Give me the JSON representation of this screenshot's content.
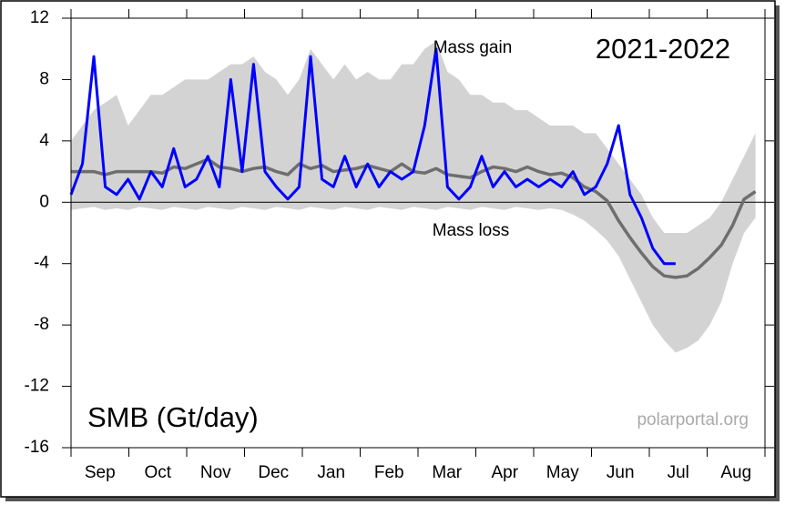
{
  "chart_data": {
    "type": "line",
    "title": "2021-2022",
    "y_label": "SMB (Gt/day)",
    "annotations": [
      "Mass gain",
      "Mass loss"
    ],
    "watermark": "polarportal.org",
    "categories": [
      "Sep",
      "Oct",
      "Nov",
      "Dec",
      "Jan",
      "Feb",
      "Mar",
      "Apr",
      "May",
      "Jun",
      "Jul",
      "Aug"
    ],
    "xlim": [
      0,
      365
    ],
    "ylim": [
      -16,
      12
    ],
    "yticks": [
      -16,
      -12,
      -8,
      -4,
      0,
      4,
      8,
      12
    ],
    "x": [
      0,
      6,
      12,
      18,
      24,
      30,
      36,
      42,
      48,
      54,
      60,
      66,
      72,
      78,
      84,
      90,
      96,
      102,
      108,
      114,
      120,
      126,
      132,
      138,
      144,
      150,
      156,
      162,
      168,
      174,
      180,
      186,
      192,
      198,
      204,
      210,
      216,
      222,
      228,
      234,
      240,
      246,
      252,
      258,
      264,
      270,
      276,
      282,
      288,
      294,
      300,
      306,
      312,
      318,
      324,
      330,
      336,
      342,
      348,
      354,
      360
    ],
    "band": {
      "color": "#d3d3d3",
      "upper": [
        4,
        5,
        6,
        6.5,
        7,
        5,
        6,
        7,
        7,
        7.5,
        8,
        8,
        8,
        8.5,
        9,
        9,
        9.5,
        8.5,
        8,
        7,
        8,
        10,
        9,
        8,
        9,
        8,
        8.5,
        8,
        8,
        9,
        9,
        10,
        10.5,
        8.5,
        8,
        7,
        7,
        6.5,
        6.5,
        6,
        6,
        5.5,
        5,
        5,
        5,
        4.5,
        4.5,
        3.5,
        2.5,
        1.5,
        0.5,
        -1,
        -2,
        -2,
        -2,
        -1.5,
        -1,
        0,
        1.5,
        3,
        4.5
      ],
      "lower": [
        -0.5,
        -0.4,
        -0.3,
        -0.5,
        -0.4,
        -0.5,
        -0.3,
        -0.4,
        -0.5,
        -0.3,
        -0.4,
        -0.5,
        -0.3,
        -0.4,
        -0.5,
        -0.3,
        -0.4,
        -0.5,
        -0.3,
        -0.4,
        -0.5,
        -0.3,
        -0.4,
        -0.5,
        -0.3,
        -0.4,
        -0.5,
        -0.3,
        -0.4,
        -0.5,
        -0.3,
        -0.4,
        -0.5,
        -0.3,
        -0.4,
        -0.5,
        -0.3,
        -0.4,
        -0.5,
        -0.3,
        -0.4,
        -0.5,
        -0.4,
        -0.5,
        -0.8,
        -1.2,
        -1.8,
        -2.5,
        -3.5,
        -5,
        -6.5,
        -8,
        -9,
        -9.8,
        -9.5,
        -9,
        -8,
        -6.5,
        -4,
        -2,
        -1
      ]
    },
    "series": [
      {
        "color": "#6e6e6e",
        "values": [
          2,
          2,
          2,
          1.8,
          2,
          2,
          2,
          2,
          1.9,
          2.3,
          2.2,
          2.5,
          2.8,
          2.3,
          2.2,
          2.0,
          2.2,
          2.3,
          2.0,
          1.8,
          2.5,
          2.2,
          2.4,
          2.0,
          2.1,
          2.2,
          2.4,
          2.2,
          2.0,
          2.5,
          2.0,
          1.9,
          2.2,
          1.8,
          1.7,
          1.6,
          2.0,
          2.3,
          2.2,
          2.0,
          2.3,
          2.0,
          1.8,
          1.9,
          1.6,
          1.0,
          0.7,
          0.1,
          -1.2,
          -2.3,
          -3.3,
          -4.2,
          -4.8,
          -4.9,
          -4.8,
          -4.3,
          -3.6,
          -2.8,
          -1.5,
          0.2,
          0.7
        ]
      },
      {
        "color": "#0000ff",
        "values": [
          0.5,
          2.5,
          9.5,
          1,
          0.5,
          1.5,
          0.2,
          2,
          1,
          3.5,
          1,
          1.5,
          3,
          1,
          8,
          2,
          9,
          2,
          1,
          0.2,
          1,
          9.5,
          1.5,
          1,
          3,
          1,
          2.5,
          1,
          2,
          1.5,
          2,
          5,
          10,
          1,
          0.2,
          1,
          3,
          1,
          2,
          1,
          1.5,
          1,
          1.5,
          1,
          2,
          0.5,
          1,
          2.5,
          5,
          0.5,
          -1,
          -3,
          -4,
          -4,
          null,
          null,
          null,
          null,
          null,
          null,
          null
        ]
      }
    ]
  }
}
